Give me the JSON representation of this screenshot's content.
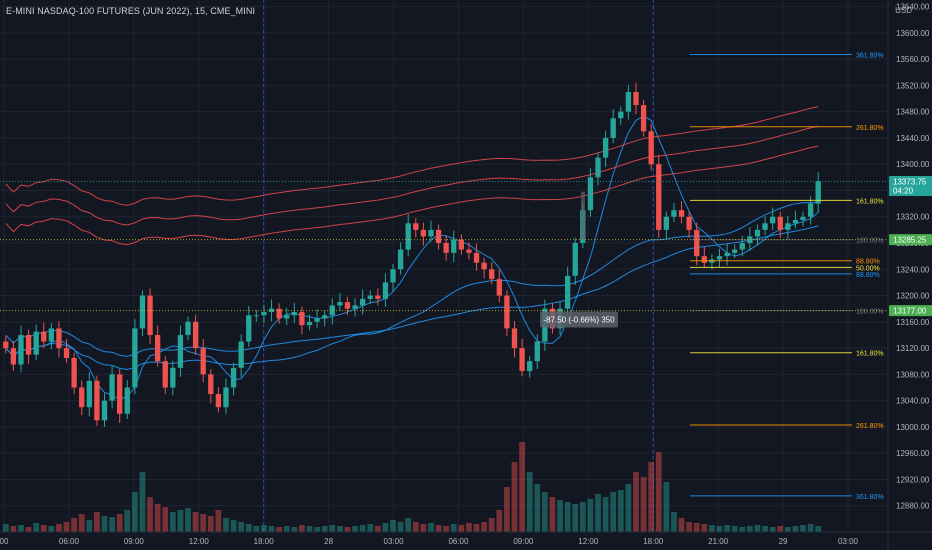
{
  "header": {
    "title": "E-MINI NASDAQ-100 FUTURES (JUN 2022), 15, CME_MINI",
    "currency": "USD"
  },
  "colors": {
    "background": "#131722",
    "bull": "#26a69a",
    "bear": "#ef5350",
    "grid": "#1f2430",
    "ma_blue": "#2196f3",
    "ma_red": "#e5484d",
    "fib_blue": "#2196f3",
    "fib_orange": "#ff9800",
    "fib_yellow": "#f0e43c",
    "price_label": "#26a69a",
    "level_label": "#4caf50"
  },
  "chart_data": {
    "type": "candlestick",
    "interval": "15m",
    "ylim": [
      12840,
      13650
    ],
    "y_ticks": [
      13640,
      13600,
      13560,
      13520,
      13480,
      13440,
      13400,
      13360,
      13320,
      13280,
      13240,
      13200,
      13160,
      13120,
      13080,
      13040,
      13000,
      12960,
      12920,
      12880
    ],
    "x_ticks": [
      "00",
      "06:00",
      "09:00",
      "12:00",
      "18:00",
      "28",
      "03:00",
      "06:00",
      "09:00",
      "12:00",
      "18:00",
      "21:00",
      "29",
      "03:00"
    ],
    "price_labels": [
      {
        "text": "13373.75",
        "subtext": "04:20",
        "value": 13373.75
      },
      {
        "text": "13285.25",
        "value": 13285.25
      },
      {
        "text": "13177.00",
        "value": 13177.0
      }
    ],
    "fib_levels": [
      {
        "label": "361.80%",
        "value": 13567,
        "color": "#2196f3"
      },
      {
        "label": "261.80%",
        "value": 13457,
        "color": "#ff9800"
      },
      {
        "label": "161.80%",
        "value": 13345,
        "color": "#f0e43c"
      },
      {
        "label": "100.00%",
        "value": 13285,
        "color": "#787b86"
      },
      {
        "label": "88.80%",
        "value": 13253,
        "color": "#ff9800"
      },
      {
        "label": "50.00%",
        "value": 13243,
        "color": "#f0e43c"
      },
      {
        "label": "88.80%",
        "value": 13233,
        "color": "#2196f3"
      },
      {
        "label": "100.00%",
        "value": 13177,
        "color": "#787b86"
      },
      {
        "label": "161.80%",
        "value": 13113,
        "color": "#f0e43c"
      },
      {
        "label": "261.80%",
        "value": 13003,
        "color": "#ff9800"
      },
      {
        "label": "361.80%",
        "value": 12895,
        "color": "#2196f3"
      }
    ],
    "measure_label": "-87.50 (-0.66%) 350",
    "closes": [
      13120,
      13095,
      13140,
      13110,
      13145,
      13130,
      13150,
      13120,
      13105,
      13060,
      13030,
      13070,
      13010,
      13040,
      13080,
      13020,
      13060,
      13150,
      13200,
      13140,
      13100,
      13060,
      13090,
      13140,
      13160,
      13120,
      13080,
      13050,
      13030,
      13060,
      13090,
      13130,
      13170,
      13170,
      13175,
      13180,
      13165,
      13170,
      13175,
      13155,
      13160,
      13165,
      13170,
      13185,
      13190,
      13180,
      13185,
      13195,
      13200,
      13195,
      13220,
      13240,
      13270,
      13310,
      13300,
      13290,
      13300,
      13280,
      13265,
      13285,
      13270,
      13265,
      13250,
      13240,
      13225,
      13200,
      13150,
      13120,
      13085,
      13100,
      13130,
      13180,
      13150,
      13180,
      13230,
      13280,
      13330,
      13380,
      13410,
      13440,
      13470,
      13480,
      13510,
      13490,
      13450,
      13400,
      13300,
      13320,
      13330,
      13320,
      13300,
      13260,
      13250,
      13255,
      13260,
      13265,
      13270,
      13280,
      13290,
      13300,
      13310,
      13320,
      13300,
      13310,
      13315,
      13320,
      13340,
      13374
    ],
    "volume_scale_max": 100,
    "volumes": [
      8,
      6,
      7,
      5,
      9,
      7,
      6,
      8,
      10,
      14,
      18,
      12,
      20,
      16,
      15,
      18,
      22,
      40,
      60,
      35,
      28,
      25,
      20,
      22,
      24,
      20,
      18,
      16,
      22,
      14,
      12,
      10,
      8,
      6,
      7,
      6,
      5,
      6,
      5,
      7,
      6,
      5,
      6,
      7,
      6,
      5,
      6,
      7,
      8,
      6,
      9,
      12,
      10,
      14,
      10,
      8,
      9,
      7,
      6,
      8,
      7,
      9,
      8,
      10,
      14,
      22,
      45,
      70,
      90,
      60,
      48,
      40,
      35,
      32,
      30,
      28,
      30,
      33,
      38,
      35,
      40,
      42,
      48,
      60,
      55,
      70,
      80,
      50,
      20,
      14,
      10,
      9,
      8,
      7,
      6,
      7,
      6,
      5,
      6,
      7,
      6,
      5,
      6,
      5,
      6,
      7,
      8,
      6
    ]
  }
}
